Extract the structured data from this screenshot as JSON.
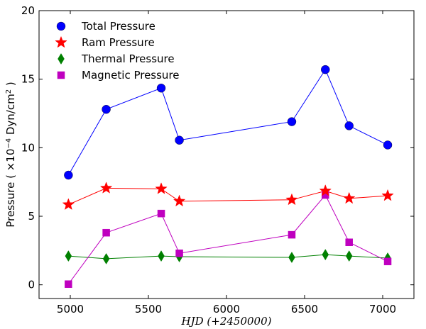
{
  "chart_data": {
    "type": "line",
    "title": "",
    "xlabel": "HJD (+2450000)",
    "ylabel": "Pressure ( ×10",
    "ylabel_exp": "−4",
    "ylabel_unit": " Dyn/cm",
    "ylabel_unit_exp": "2",
    "ylabel_close": " )",
    "xlim": [
      4800,
      7200
    ],
    "ylim": [
      -1,
      20
    ],
    "x_ticks": [
      5000,
      5500,
      6000,
      6500,
      7000
    ],
    "y_ticks": [
      0,
      5,
      10,
      15,
      20
    ],
    "grid": false,
    "legend_position": "top-left",
    "x": [
      4988,
      5230,
      5582,
      5698,
      6418,
      6633,
      6785,
      7032
    ],
    "series": [
      {
        "name": "Total Pressure",
        "color": "#0000ff",
        "marker": "circle",
        "values": [
          8.0,
          12.8,
          14.35,
          10.55,
          11.9,
          15.7,
          11.6,
          10.2
        ]
      },
      {
        "name": "Ram Pressure",
        "color": "#ff0000",
        "marker": "star",
        "values": [
          5.85,
          7.05,
          7.0,
          6.1,
          6.2,
          6.85,
          6.3,
          6.5
        ]
      },
      {
        "name": "Thermal Pressure",
        "color": "#008000",
        "marker": "diamond",
        "values": [
          2.1,
          1.9,
          2.1,
          2.05,
          2.0,
          2.2,
          2.1,
          1.95
        ]
      },
      {
        "name": "Magnetic Pressure",
        "color": "#bf00bf",
        "marker": "square",
        "values": [
          0.05,
          3.8,
          5.2,
          2.3,
          3.65,
          6.55,
          3.1,
          1.7
        ]
      }
    ]
  }
}
